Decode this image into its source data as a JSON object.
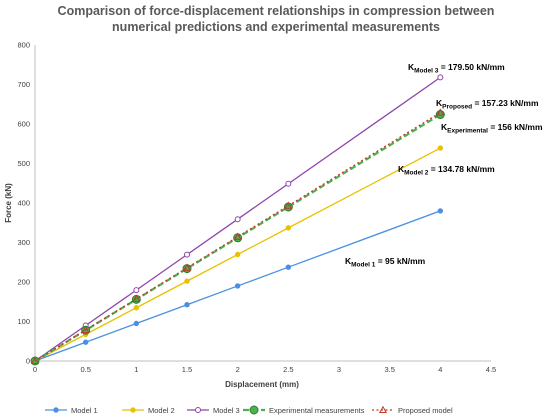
{
  "chart_data": {
    "type": "line",
    "title_lines": [
      "Comparison of force-displacement relationships in compression between",
      "numerical predictions and experimental measurements"
    ],
    "xlabel": "Displacement (mm)",
    "ylabel": "Force (kN)",
    "xlim": [
      0,
      4.5
    ],
    "ylim": [
      0,
      800
    ],
    "x_ticks": [
      "0",
      "0.5",
      "1",
      "1.5",
      "2",
      "2.5",
      "3",
      "3.5",
      "4",
      "4.5"
    ],
    "y_ticks": [
      "0",
      "100",
      "200",
      "300",
      "400",
      "500",
      "600",
      "700",
      "800"
    ],
    "grid": "none",
    "legend_position": "bottom",
    "series": [
      {
        "key": "model1",
        "name": "Model 1",
        "color": "#4a90e2",
        "marker": "circle-filled",
        "dash": "solid",
        "x": [
          0,
          0.5,
          1,
          1.5,
          2,
          2.5,
          4
        ],
        "y": [
          0,
          47.5,
          95,
          142.5,
          190,
          237.5,
          380
        ]
      },
      {
        "key": "model2",
        "name": "Model 2",
        "color": "#e8c200",
        "marker": "circle-filled",
        "dash": "solid",
        "x": [
          0,
          0.5,
          1,
          1.5,
          2,
          2.5,
          4
        ],
        "y": [
          0,
          67.4,
          134.8,
          202.2,
          269.6,
          337,
          539.1
        ]
      },
      {
        "key": "model3",
        "name": "Model 3",
        "color": "#8e44ad",
        "marker": "circle-open",
        "dash": "solid",
        "x": [
          0,
          0.5,
          1,
          1.5,
          2,
          2.5,
          4
        ],
        "y": [
          0,
          89.8,
          179.5,
          269.3,
          359,
          448.8,
          718
        ]
      },
      {
        "key": "experimental",
        "name": "Experimental measurements",
        "color": "#4caf50",
        "marker": "circle-filled-large",
        "dash": "dashed",
        "x": [
          0,
          0.5,
          1,
          1.5,
          2,
          2.5,
          4
        ],
        "y": [
          0,
          78,
          156,
          234,
          312,
          390,
          624
        ]
      },
      {
        "key": "proposed",
        "name": "Proposed model",
        "color": "#c0392b",
        "marker": "triangle-open",
        "dash": "dotted",
        "x": [
          0,
          0.5,
          1,
          1.5,
          2,
          2.5,
          4
        ],
        "y": [
          0,
          78.6,
          157.2,
          235.8,
          314.5,
          393.1,
          628.9
        ]
      }
    ],
    "annotations": [
      {
        "key": "k_model3",
        "k": "K",
        "sub": "Model 3",
        "value": " = 179.50 kN/mm"
      },
      {
        "key": "k_proposed",
        "k": "K",
        "sub": "Proposed",
        "value": " = 157.23 kN/mm"
      },
      {
        "key": "k_experimental",
        "k": "K",
        "sub": "Experimental",
        "value": " = 156 kN/mm"
      },
      {
        "key": "k_model2",
        "k": "K",
        "sub": "Model 2",
        "value": " = 134.78 kN/mm"
      },
      {
        "key": "k_model1",
        "k": "K",
        "sub": "Model 1",
        "value": " = 95 kN/mm"
      }
    ]
  }
}
